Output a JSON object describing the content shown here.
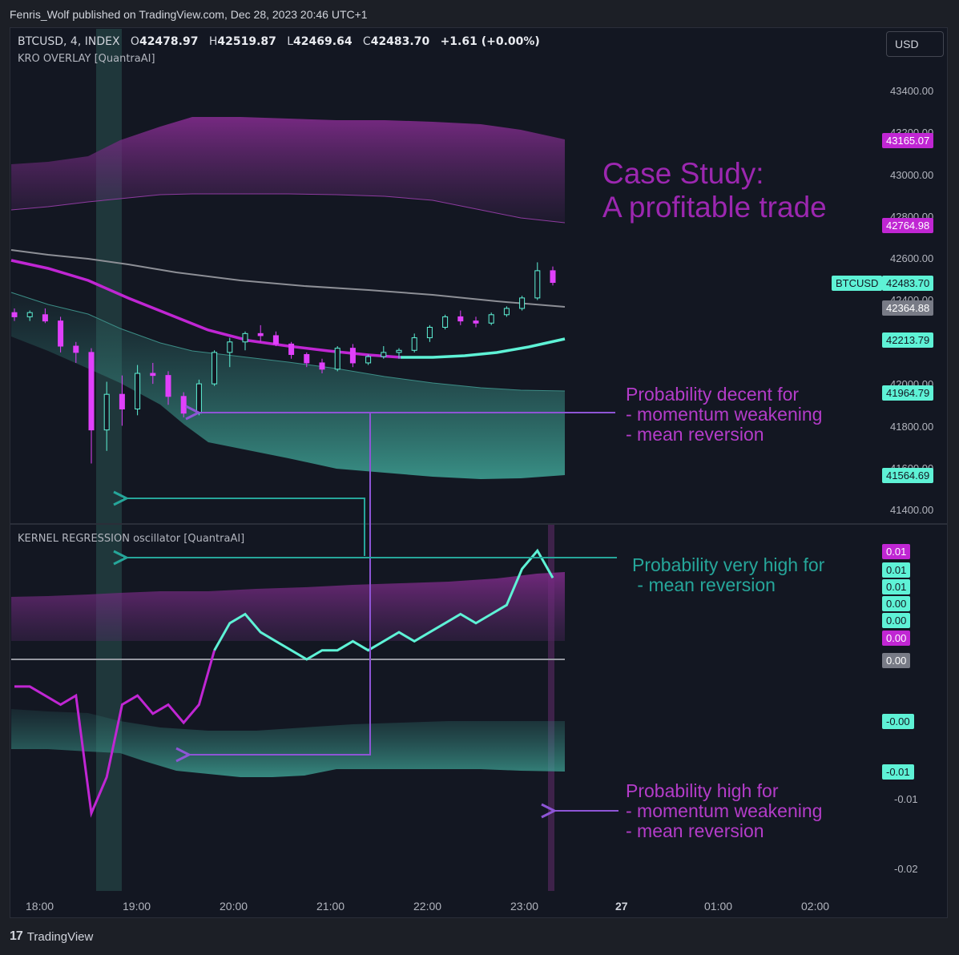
{
  "header": {
    "published": "Fenris_Wolf published on TradingView.com, Dec 28, 2023 20:46 UTC+1"
  },
  "legend": {
    "symbol": "BTCUSD, 4, INDEX",
    "o_label": "O",
    "open": "42478.97",
    "h_label": "H",
    "high": "42519.87",
    "l_label": "L",
    "low": "42469.64",
    "c_label": "C",
    "close": "42483.70",
    "change": "+1.61 (+0.00%)"
  },
  "indicator1": "KRO OVERLAY [QuantraAI]",
  "indicator2": "KERNEL REGRESSION oscillator [QuantraAI]",
  "currency_button": "USD",
  "footer_brand": "TradingView",
  "title_text": {
    "line1": "Case Study:",
    "line2": "A profitable trade"
  },
  "annotations": {
    "a1": [
      "Probability decent for",
      "- momentum weakening",
      "- mean reversion"
    ],
    "a2": [
      "Probability very high for",
      " - mean reversion"
    ],
    "a3": [
      "Probability high for",
      "- momentum weakening",
      "- mean reversion"
    ]
  },
  "price_axis": [
    "43400.00",
    "43200.00",
    "43000.00",
    "42800.00",
    "42600.00",
    "42400.00",
    "42000.00",
    "41800.00",
    "41600.00",
    "41400.00"
  ],
  "price_tags": [
    {
      "label": "43165.07",
      "color": "#c026d3"
    },
    {
      "label": "42764.98",
      "color": "#c026d3"
    },
    {
      "label": "42483.70",
      "color": "#5ef2d6",
      "name": "BTCUSD"
    },
    {
      "label": "42364.88",
      "color": "#787b86"
    },
    {
      "label": "42213.79",
      "color": "#5ef2d6"
    },
    {
      "label": "41964.79",
      "color": "#5ef2d6"
    },
    {
      "label": "41564.69",
      "color": "#5ef2d6"
    }
  ],
  "osc_tags": [
    "0.01",
    "0.01",
    "0.01",
    "0.00",
    "0.00",
    "0.00",
    "0.00",
    "-0.00",
    "-0.01"
  ],
  "osc_axis": [
    "-0.01",
    "-0.01",
    "-0.02"
  ],
  "time_axis": [
    "18:00",
    "19:00",
    "20:00",
    "21:00",
    "22:00",
    "23:00",
    "27",
    "01:00",
    "02:00"
  ],
  "colors": {
    "bg": "#131722",
    "purple": "#c026d3",
    "teal": "#5ef2d6",
    "up": "#5ef2d6",
    "down": "#e040fb",
    "annot_purple": "#9c27b0",
    "annot_teal": "#26a69a"
  },
  "chart_data": [
    {
      "type": "candlestick",
      "title": "BTCUSD, 4, INDEX",
      "x": [
        "17:40",
        "17:50",
        "18:00",
        "18:10",
        "18:20",
        "18:30",
        "18:40",
        "18:50",
        "19:00",
        "19:10",
        "19:20",
        "19:30",
        "19:40",
        "19:50",
        "20:00",
        "20:10",
        "20:20",
        "20:30",
        "20:40",
        "20:50",
        "21:00",
        "21:10",
        "21:20",
        "21:30",
        "21:40",
        "21:50",
        "22:00",
        "22:10",
        "22:20",
        "22:30",
        "22:40",
        "22:50",
        "23:00",
        "23:10",
        "23:20",
        "23:30"
      ],
      "ohlc": [
        [
          42340,
          42360,
          42300,
          42320
        ],
        [
          42320,
          42350,
          42300,
          42340
        ],
        [
          42330,
          42360,
          42290,
          42300
        ],
        [
          42300,
          42320,
          42150,
          42180
        ],
        [
          42180,
          42200,
          42100,
          42150
        ],
        [
          42150,
          42170,
          41620,
          41780
        ],
        [
          41780,
          42010,
          41680,
          41950
        ],
        [
          41950,
          42040,
          41800,
          41880
        ],
        [
          41880,
          42090,
          41850,
          42050
        ],
        [
          42050,
          42100,
          42000,
          42040
        ],
        [
          42040,
          42060,
          41900,
          41940
        ],
        [
          41940,
          41960,
          41840,
          41860
        ],
        [
          41860,
          42020,
          41850,
          42000
        ],
        [
          42000,
          42160,
          41990,
          42150
        ],
        [
          42150,
          42220,
          42080,
          42200
        ],
        [
          42200,
          42250,
          42160,
          42240
        ],
        [
          42240,
          42280,
          42200,
          42230
        ],
        [
          42230,
          42250,
          42180,
          42190
        ],
        [
          42190,
          42200,
          42120,
          42140
        ],
        [
          42140,
          42150,
          42080,
          42100
        ],
        [
          42100,
          42120,
          42050,
          42070
        ],
        [
          42070,
          42180,
          42060,
          42170
        ],
        [
          42170,
          42190,
          42080,
          42100
        ],
        [
          42100,
          42140,
          42090,
          42130
        ],
        [
          42130,
          42180,
          42120,
          42150
        ],
        [
          42150,
          42170,
          42120,
          42160
        ],
        [
          42160,
          42240,
          42150,
          42220
        ],
        [
          42220,
          42280,
          42200,
          42270
        ],
        [
          42270,
          42330,
          42260,
          42320
        ],
        [
          42320,
          42350,
          42280,
          42300
        ],
        [
          42300,
          42320,
          42270,
          42290
        ],
        [
          42290,
          42340,
          42280,
          42330
        ],
        [
          42330,
          42370,
          42320,
          42360
        ],
        [
          42360,
          42420,
          42350,
          42410
        ],
        [
          42410,
          42580,
          42400,
          42540
        ],
        [
          42540,
          42560,
          42470,
          42484
        ]
      ],
      "series": [
        {
          "name": "KRO OVERLAY upper band"
        },
        {
          "name": "KRO OVERLAY lower band"
        },
        {
          "name": "Moving average"
        }
      ]
    },
    {
      "type": "line",
      "title": "KERNEL REGRESSION oscillator [QuantraAI]",
      "x": [
        "17:40",
        "17:50",
        "18:00",
        "18:10",
        "18:20",
        "18:30",
        "18:40",
        "18:50",
        "19:00",
        "19:10",
        "19:20",
        "19:30",
        "19:40",
        "19:50",
        "20:00",
        "20:10",
        "20:20",
        "20:30",
        "20:40",
        "20:50",
        "21:00",
        "21:10",
        "21:20",
        "21:30",
        "21:40",
        "21:50",
        "22:00",
        "22:10",
        "22:20",
        "22:30",
        "22:40",
        "22:50",
        "23:00",
        "23:10",
        "23:20",
        "23:30"
      ],
      "series": [
        {
          "values": [
            -0.003,
            -0.003,
            -0.004,
            -0.005,
            -0.004,
            -0.017,
            -0.013,
            -0.005,
            -0.004,
            -0.006,
            -0.005,
            -0.007,
            -0.005,
            0.001,
            0.004,
            0.005,
            0.003,
            0.002,
            0.001,
            0.0,
            0.001,
            0.001,
            0.002,
            0.001,
            0.002,
            0.003,
            0.002,
            0.003,
            0.004,
            0.005,
            0.004,
            0.005,
            0.006,
            0.01,
            0.012,
            0.009
          ]
        }
      ]
    }
  ]
}
